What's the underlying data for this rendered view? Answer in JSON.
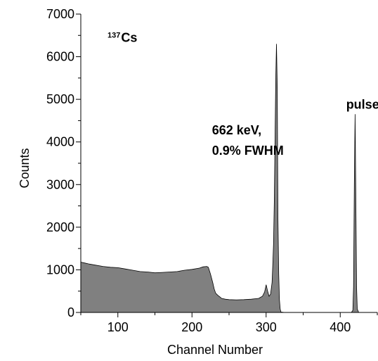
{
  "chart_data": {
    "type": "area",
    "xlabel": "Channel Number",
    "ylabel": "Counts",
    "xlim": [
      50,
      450
    ],
    "ylim": [
      0,
      7000
    ],
    "x_ticks": [
      100,
      200,
      300,
      400
    ],
    "y_ticks": [
      0,
      1000,
      2000,
      3000,
      4000,
      5000,
      6000,
      7000
    ],
    "grid": false,
    "fill_color": "#808080",
    "line_color": "#000000",
    "series": [
      {
        "x": [
          50,
          55,
          60,
          70,
          80,
          90,
          100,
          110,
          120,
          130,
          140,
          150,
          160,
          170,
          180,
          190,
          200,
          210,
          215,
          220,
          222,
          225,
          228,
          230,
          232,
          235,
          238,
          240,
          245,
          250,
          260,
          270,
          280,
          290,
          295,
          298,
          300,
          302,
          304,
          306,
          308,
          309,
          310,
          311,
          312,
          313,
          314,
          315,
          316,
          317,
          318,
          319,
          320,
          325,
          330,
          340,
          350,
          360,
          370,
          380,
          390,
          400,
          410,
          415,
          417,
          418,
          419,
          420,
          421,
          422,
          423,
          425,
          430,
          440,
          450
        ],
        "values": [
          1180,
          1160,
          1140,
          1110,
          1080,
          1060,
          1050,
          1020,
          990,
          960,
          950,
          930,
          940,
          950,
          960,
          990,
          1010,
          1040,
          1070,
          1080,
          1060,
          900,
          700,
          550,
          450,
          400,
          360,
          330,
          310,
          300,
          295,
          300,
          310,
          330,
          380,
          480,
          650,
          500,
          380,
          430,
          700,
          1100,
          1600,
          2600,
          4000,
          5500,
          6300,
          5300,
          2200,
          900,
          300,
          80,
          10,
          0,
          0,
          0,
          0,
          0,
          0,
          0,
          0,
          0,
          0,
          0,
          50,
          600,
          3000,
          4650,
          2800,
          600,
          80,
          0,
          0,
          0,
          0
        ]
      }
    ],
    "annotations": [
      {
        "id": "isotope",
        "text": "Cs",
        "superscript": "137",
        "x": 86,
        "y": 6350
      },
      {
        "id": "peak-label-line1",
        "text": "662 keV,",
        "x": 227,
        "y": 4180
      },
      {
        "id": "peak-label-line2",
        "text": "0.9% FWHM",
        "x": 227,
        "y": 3700
      },
      {
        "id": "pulser-label",
        "text": "pulser",
        "x": 408,
        "y": 4780
      }
    ]
  }
}
